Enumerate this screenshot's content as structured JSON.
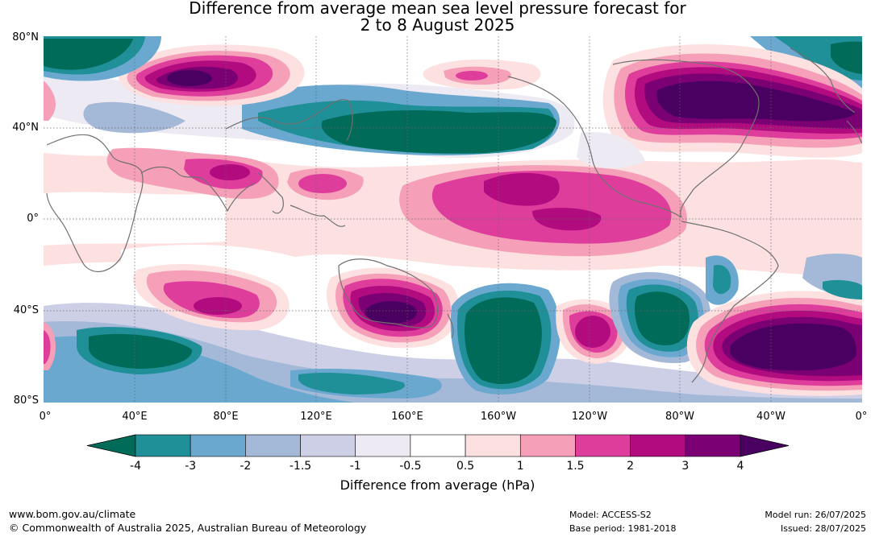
{
  "title": {
    "line1": "Difference from average mean sea level pressure forecast for",
    "line2": "2 to 8 August 2025"
  },
  "map": {
    "lat_labels": [
      "80°N",
      "40°N",
      "0°",
      "40°S",
      "80°S"
    ],
    "lon_labels": [
      "0°",
      "40°E",
      "80°E",
      "120°E",
      "160°E",
      "160°W",
      "120°W",
      "80°W",
      "40°W",
      "0°"
    ],
    "lat_values": [
      80,
      40,
      0,
      -40,
      -80
    ],
    "lon_values": [
      0,
      40,
      80,
      120,
      160,
      200,
      240,
      280,
      320,
      360
    ],
    "anomaly_features": [
      {
        "lon": 70,
        "lat": 64,
        "level": 3,
        "desc": "high anomaly over Siberia"
      },
      {
        "lon": 85,
        "lat": 24,
        "level": 2,
        "desc": "high anomaly over India"
      },
      {
        "lon": 126,
        "lat": 16,
        "level": 1.5,
        "desc": "high anomaly near Philippines"
      },
      {
        "lon": 140,
        "lat": 40,
        "level": -4,
        "desc": "low anomaly over North Pacific"
      },
      {
        "lon": 12,
        "lat": 72,
        "level": -4,
        "desc": "low anomaly over Scandinavia"
      },
      {
        "lon": 355,
        "lat": 72,
        "level": -4,
        "desc": "low anomaly over Greenland Sea"
      },
      {
        "lon": 210,
        "lat": 8,
        "level": 2,
        "desc": "high anomaly over central Pacific"
      },
      {
        "lon": 295,
        "lat": 50,
        "level": 4,
        "desc": "high anomaly over North America / North Atlantic"
      },
      {
        "lon": 160,
        "lat": -42,
        "level": 4,
        "desc": "high anomaly over Tasman Sea"
      },
      {
        "lon": 85,
        "lat": -40,
        "level": 3,
        "desc": "high anomaly south of Indian Ocean"
      },
      {
        "lon": 200,
        "lat": -50,
        "level": -4,
        "desc": "low anomaly over South Pacific"
      },
      {
        "lon": 278,
        "lat": -42,
        "level": -4,
        "desc": "low anomaly west of South America"
      },
      {
        "lon": 240,
        "lat": -48,
        "level": 3,
        "desc": "high anomaly over south-east Pacific"
      },
      {
        "lon": 330,
        "lat": -58,
        "level": 4,
        "desc": "high anomaly over South Atlantic"
      },
      {
        "lon": 45,
        "lat": -58,
        "level": -4,
        "desc": "low anomaly over Southern Ocean"
      }
    ]
  },
  "colorbar": {
    "colors": {
      "lt_-4": "#006b58",
      "-4_-3": "#1f8f98",
      "-3_-2": "#6aa8cf",
      "-2_-1.5": "#a4b8d8",
      "-1.5_-1": "#cccfe6",
      "-1_-0.5": "#eeeaf3",
      "-0.5_0.5": "#ffffff",
      "0.5_1": "#fde0e0",
      "1_1.5": "#f59fb8",
      "1.5_2": "#df3d9c",
      "2_3": "#b20b80",
      "3_4": "#7a0074",
      "gt_4": "#4a0060"
    },
    "tick_labels": [
      "-4",
      "-3",
      "-2",
      "-1.5",
      "-1",
      "-0.5",
      "0.5",
      "1",
      "1.5",
      "2",
      "3",
      "4"
    ],
    "title": "Difference from average (hPa)"
  },
  "footer": {
    "website": "www.bom.gov.au/climate",
    "copyright": "© Commonwealth of Australia 2025, Australian Bureau of Meteorology",
    "model": "Model: ACCESS-S2",
    "base_period": "Base period: 1981-2018",
    "model_run": "Model run: 26/07/2025",
    "issued": "Issued: 28/07/2025"
  }
}
